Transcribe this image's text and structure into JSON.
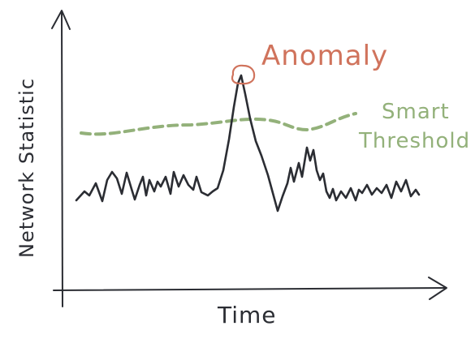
{
  "labels": {
    "y_axis": "Network Statistic",
    "x_axis": "Time",
    "anomaly": "Anomaly",
    "threshold_line1": "Smart",
    "threshold_line2": "Threshold"
  },
  "colors": {
    "ink": "#2b2d33",
    "anomaly": "#d0735c",
    "threshold": "#93b17a"
  }
}
